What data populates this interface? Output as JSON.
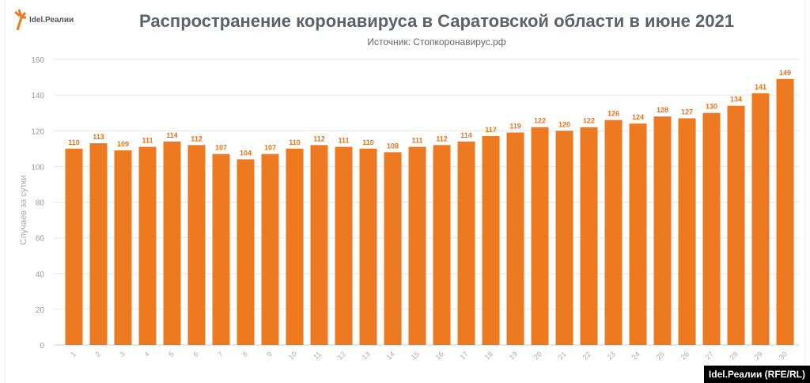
{
  "logo": {
    "text": "Idel.Реалии"
  },
  "credit": "Idel.Реалии (RFE/RL)",
  "colors": {
    "bar": "#ed7a21",
    "label": "#e8731c"
  },
  "chart_data": {
    "type": "bar",
    "title": "Распространение коронавируса в Саратовской области в июне 2021",
    "subtitle": "Источник: Стопкоронавирус.рф",
    "xlabel": "",
    "ylabel": "Случаев за сутки",
    "ylim": [
      0,
      160
    ],
    "yticks": [
      0,
      20,
      40,
      60,
      80,
      100,
      120,
      140,
      160
    ],
    "grid": true,
    "categories": [
      "1",
      "2",
      "3",
      "4",
      "5",
      "6",
      "7",
      "8",
      "9",
      "10",
      "11",
      "12",
      "13",
      "14",
      "15",
      "16",
      "17",
      "18",
      "19",
      "20",
      "21",
      "22",
      "23",
      "24",
      "25",
      "26",
      "27",
      "28",
      "29",
      "30"
    ],
    "values": [
      110,
      113,
      109,
      111,
      114,
      112,
      107,
      104,
      107,
      110,
      112,
      111,
      110,
      108,
      111,
      112,
      114,
      117,
      119,
      122,
      120,
      122,
      126,
      124,
      128,
      127,
      130,
      134,
      141,
      149
    ]
  }
}
